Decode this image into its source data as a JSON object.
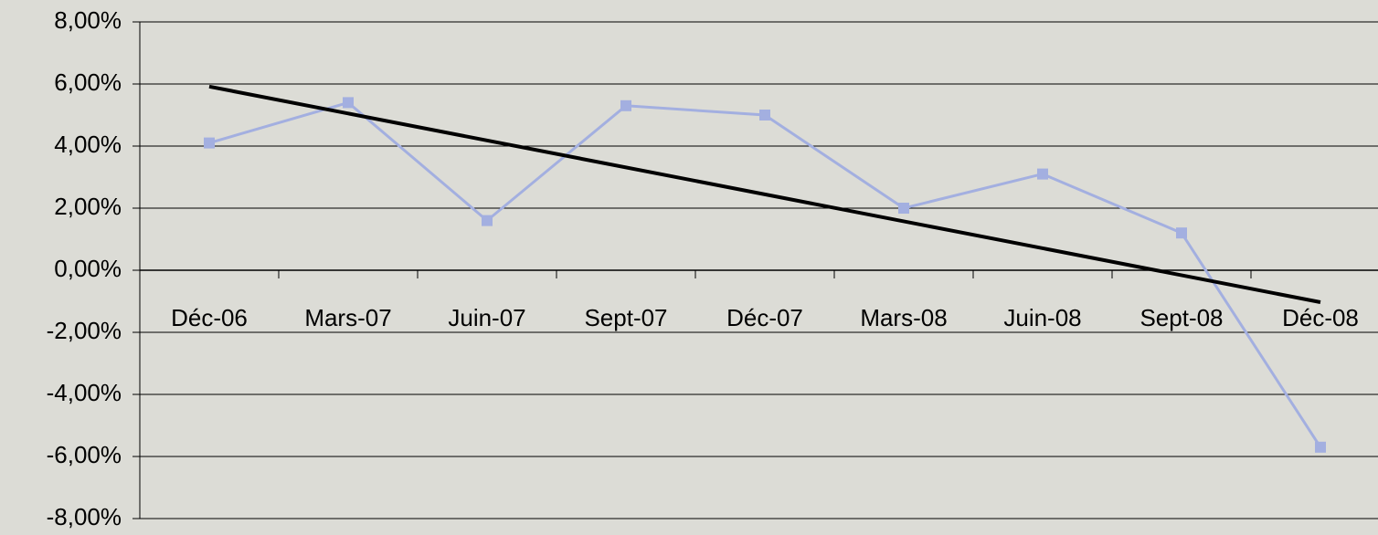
{
  "chart_data": {
    "type": "line",
    "categories": [
      "Déc-06",
      "Mars-07",
      "Juin-07",
      "Sept-07",
      "Déc-07",
      "Mars-08",
      "Juin-08",
      "Sept-08",
      "Déc-08"
    ],
    "series": [
      {
        "color": "#a3afe0",
        "values": [
          4.1,
          5.4,
          1.6,
          5.3,
          5.0,
          2.0,
          3.1,
          1.2,
          -5.7
        ]
      }
    ],
    "trendline": {
      "kind": "linear",
      "color": "#000000"
    },
    "ylim": [
      -8,
      8
    ],
    "yticks": [
      {
        "value": -8,
        "label": "-8,00%"
      },
      {
        "value": -6,
        "label": "-6,00%"
      },
      {
        "value": -4,
        "label": "-4,00%"
      },
      {
        "value": -2,
        "label": "-2,00%"
      },
      {
        "value": 0,
        "label": "0,00%"
      },
      {
        "value": 2,
        "label": "2,00%"
      },
      {
        "value": 4,
        "label": "4,00%"
      },
      {
        "value": 6,
        "label": "6,00%"
      },
      {
        "value": 8,
        "label": "8,00%"
      }
    ],
    "grid": true
  }
}
